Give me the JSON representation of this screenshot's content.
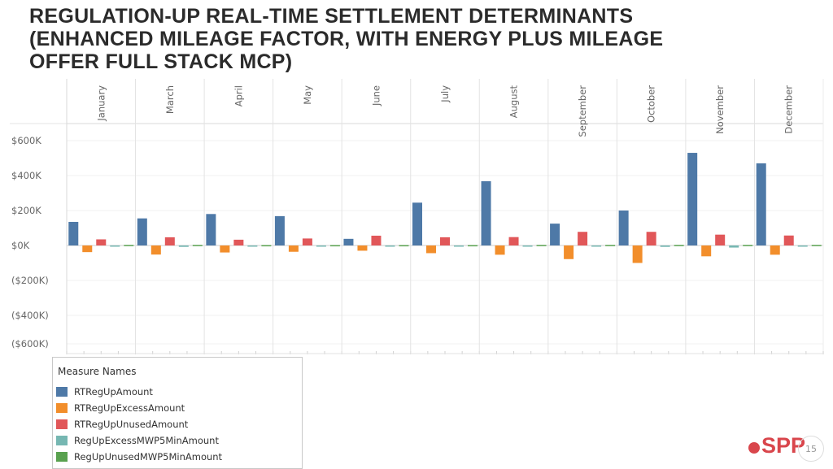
{
  "title_lines": [
    "REGULATION-UP REAL-TIME SETTLEMENT DETERMINANTS",
    "(ENHANCED MILEAGE FACTOR, WITH ENERGY PLUS MILEAGE",
    "OFFER FULL STACK MCP)"
  ],
  "chart_data": {
    "type": "bar",
    "categories": [
      "January",
      "March",
      "April",
      "May",
      "June",
      "July",
      "August",
      "September",
      "October",
      "November",
      "December"
    ],
    "y_ticks": [
      "$600K",
      "$400K",
      "$200K",
      "$0K",
      "($200K)",
      "($400K)",
      "($600K)"
    ],
    "ylim": [
      -600000,
      600000
    ],
    "grid": true,
    "legend_position": "bottom-left",
    "series": [
      {
        "name": "RTRegUpAmount",
        "color": "#4e79a7",
        "values": [
          135000,
          155000,
          180000,
          168000,
          38000,
          245000,
          368000,
          125000,
          200000,
          530000,
          470000
        ]
      },
      {
        "name": "RTRegUpExcessAmount",
        "color": "#f28e2b",
        "values": [
          -38000,
          -52000,
          -40000,
          -36000,
          -30000,
          -44000,
          -53000,
          -78000,
          -100000,
          -62000,
          -53000
        ]
      },
      {
        "name": "RTRegUpUnusedAmount",
        "color": "#e15759",
        "values": [
          35000,
          47000,
          33000,
          40000,
          56000,
          47000,
          48000,
          78000,
          78000,
          62000,
          57000
        ]
      },
      {
        "name": "RegUpExcessMWP5MinAmount",
        "color": "#76b7b2",
        "values": [
          -4000,
          -8000,
          -3000,
          -3000,
          -3000,
          -3000,
          -4000,
          -6000,
          -8000,
          -12000,
          -5000
        ]
      },
      {
        "name": "RegUpUnusedMWP5MinAmount",
        "color": "#59a14f",
        "values": [
          3000,
          3000,
          2000,
          2000,
          2000,
          2000,
          3000,
          3000,
          3000,
          3000,
          3000
        ]
      }
    ]
  },
  "legend": {
    "title": "Measure Names"
  },
  "logo_text": "SPP",
  "page_number": "15"
}
